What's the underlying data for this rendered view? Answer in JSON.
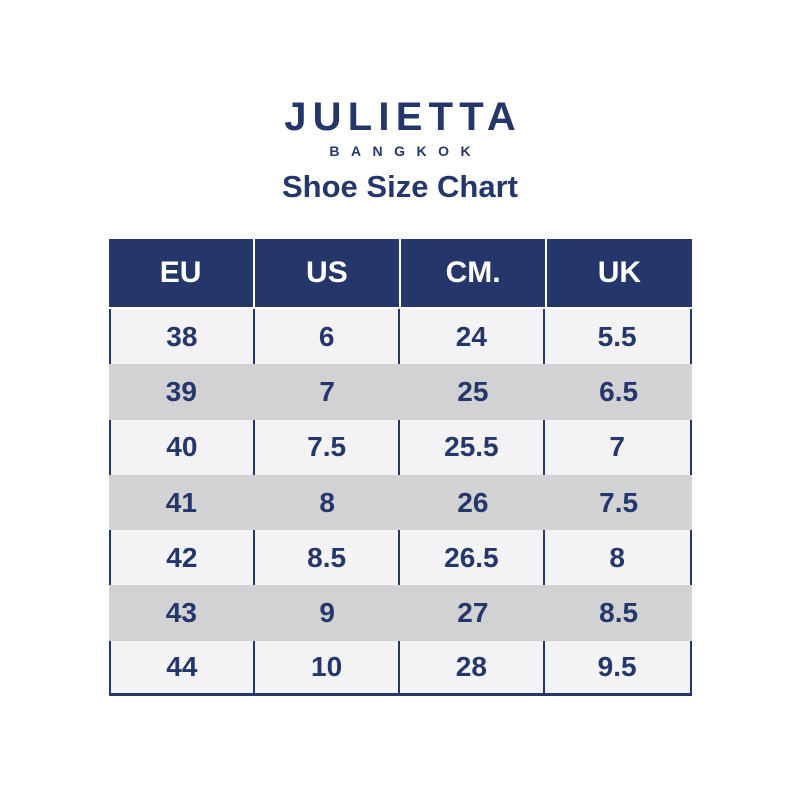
{
  "brand": {
    "name": "JULIETTA",
    "location": "BANGKOK"
  },
  "title": "Shoe Size Chart",
  "colors": {
    "navy": "#25376a",
    "light_row": "#f3f3f5",
    "gray_row": "#d2d2d4",
    "header_text": "#ffffff",
    "background": "#ffffff"
  },
  "table": {
    "headers": [
      "EU",
      "US",
      "CM.",
      "UK"
    ],
    "rows": [
      [
        "38",
        "6",
        "24",
        "5.5"
      ],
      [
        "39",
        "7",
        "25",
        "6.5"
      ],
      [
        "40",
        "7.5",
        "25.5",
        "7"
      ],
      [
        "41",
        "8",
        "26",
        "7.5"
      ],
      [
        "42",
        "8.5",
        "26.5",
        "8"
      ],
      [
        "43",
        "9",
        "27",
        "8.5"
      ],
      [
        "44",
        "10",
        "28",
        "9.5"
      ]
    ]
  },
  "chart_data": {
    "type": "table",
    "title": "Shoe Size Chart",
    "columns": [
      "EU",
      "US",
      "CM.",
      "UK"
    ],
    "rows": [
      [
        38,
        6,
        24,
        5.5
      ],
      [
        39,
        7,
        25,
        6.5
      ],
      [
        40,
        7.5,
        25.5,
        7
      ],
      [
        41,
        8,
        26,
        7.5
      ],
      [
        42,
        8.5,
        26.5,
        8
      ],
      [
        43,
        9,
        27,
        8.5
      ],
      [
        44,
        10,
        28,
        9.5
      ]
    ],
    "layout": "header row navy with white text; body rows alternate light gray and darker gray stripes; navy column dividers visible on light rows only"
  }
}
